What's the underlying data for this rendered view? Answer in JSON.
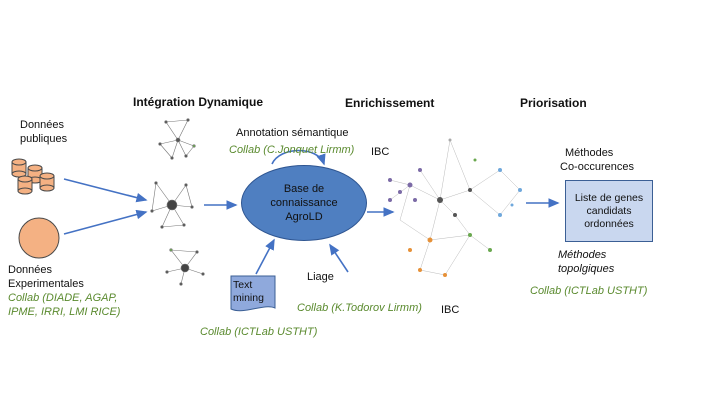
{
  "headings": {
    "integration": "Intégration Dynamique",
    "enrichment": "Enrichissement",
    "prioritization": "Priorisation"
  },
  "left": {
    "public_data_1": "Données",
    "public_data_2": "publiques",
    "exp_data_1": "Données",
    "exp_data_2": "Experimentales",
    "collab_1": "Collab (DIADE, AGAP,",
    "collab_2": "IPME, IRRI, LMI RICE)"
  },
  "annotation": {
    "label": "Annotation sémantique",
    "collab": "Collab (C.Jonquet Lirmm)",
    "org": "IBC"
  },
  "knowledge_base": {
    "line1": "Base de",
    "line2": "connaissance",
    "line3": "AgroLD"
  },
  "text_mining": {
    "line1": "Text",
    "line2": "mining",
    "collab": "Collab (ICTLab USTHT)"
  },
  "linking": {
    "label": "Liage",
    "collab": "Collab (K.Todorov Lirmm)",
    "org": "IBC"
  },
  "methods": {
    "cooc_1": "Méthodes",
    "cooc_2": "Co-occurences",
    "topo_1": "Méthodes",
    "topo_2": "topolgiques",
    "collab": "Collab (ICTLab USTHT)"
  },
  "result_box": {
    "line1": "Liste de genes",
    "line2": "candidats",
    "line3": "ordonnées"
  },
  "colors": {
    "arrow": "#4472c4",
    "ellipse": "#4f7fc1",
    "result_box": "#c9d7ef",
    "text_mining_doc": "#8fa9dc",
    "cylinders": "#f4b183",
    "collab_text": "#5a8a2e"
  }
}
